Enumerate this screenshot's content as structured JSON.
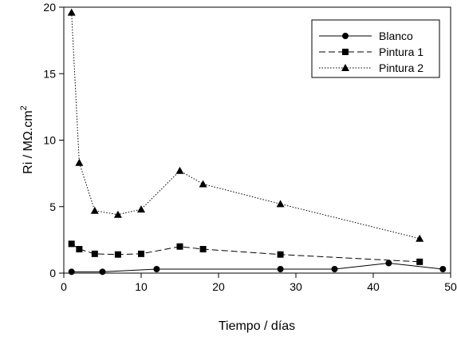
{
  "chart_data": {
    "type": "line",
    "xlabel": "Tiempo / días",
    "ylabel": "Ri / MΩ.cm",
    "ylabel_superscript": "2",
    "xlim": [
      0,
      50
    ],
    "ylim": [
      0,
      20
    ],
    "x_ticks": [
      "0",
      "10",
      "20",
      "30",
      "40",
      "50"
    ],
    "y_ticks": [
      "0",
      "5",
      "10",
      "15",
      "20"
    ],
    "grid": false,
    "legend_position": "top-right",
    "series": [
      {
        "name": "Blanco",
        "marker": "circle",
        "line_style": "solid",
        "x": [
          1,
          5,
          12,
          28,
          35,
          42,
          49
        ],
        "y": [
          0.1,
          0.1,
          0.3,
          0.3,
          0.3,
          0.75,
          0.3
        ]
      },
      {
        "name": "Pintura 1",
        "marker": "square",
        "line_style": "dashed",
        "x": [
          1,
          2,
          4,
          7,
          10,
          15,
          18,
          28,
          46
        ],
        "y": [
          2.2,
          1.8,
          1.45,
          1.4,
          1.45,
          2.0,
          1.8,
          1.4,
          0.85
        ]
      },
      {
        "name": "Pintura 2",
        "marker": "triangle",
        "line_style": "dotted",
        "x": [
          1,
          2,
          4,
          7,
          10,
          15,
          18,
          28,
          46
        ],
        "y": [
          19.6,
          8.3,
          4.7,
          4.4,
          4.8,
          7.7,
          6.7,
          5.2,
          2.6
        ]
      }
    ]
  }
}
